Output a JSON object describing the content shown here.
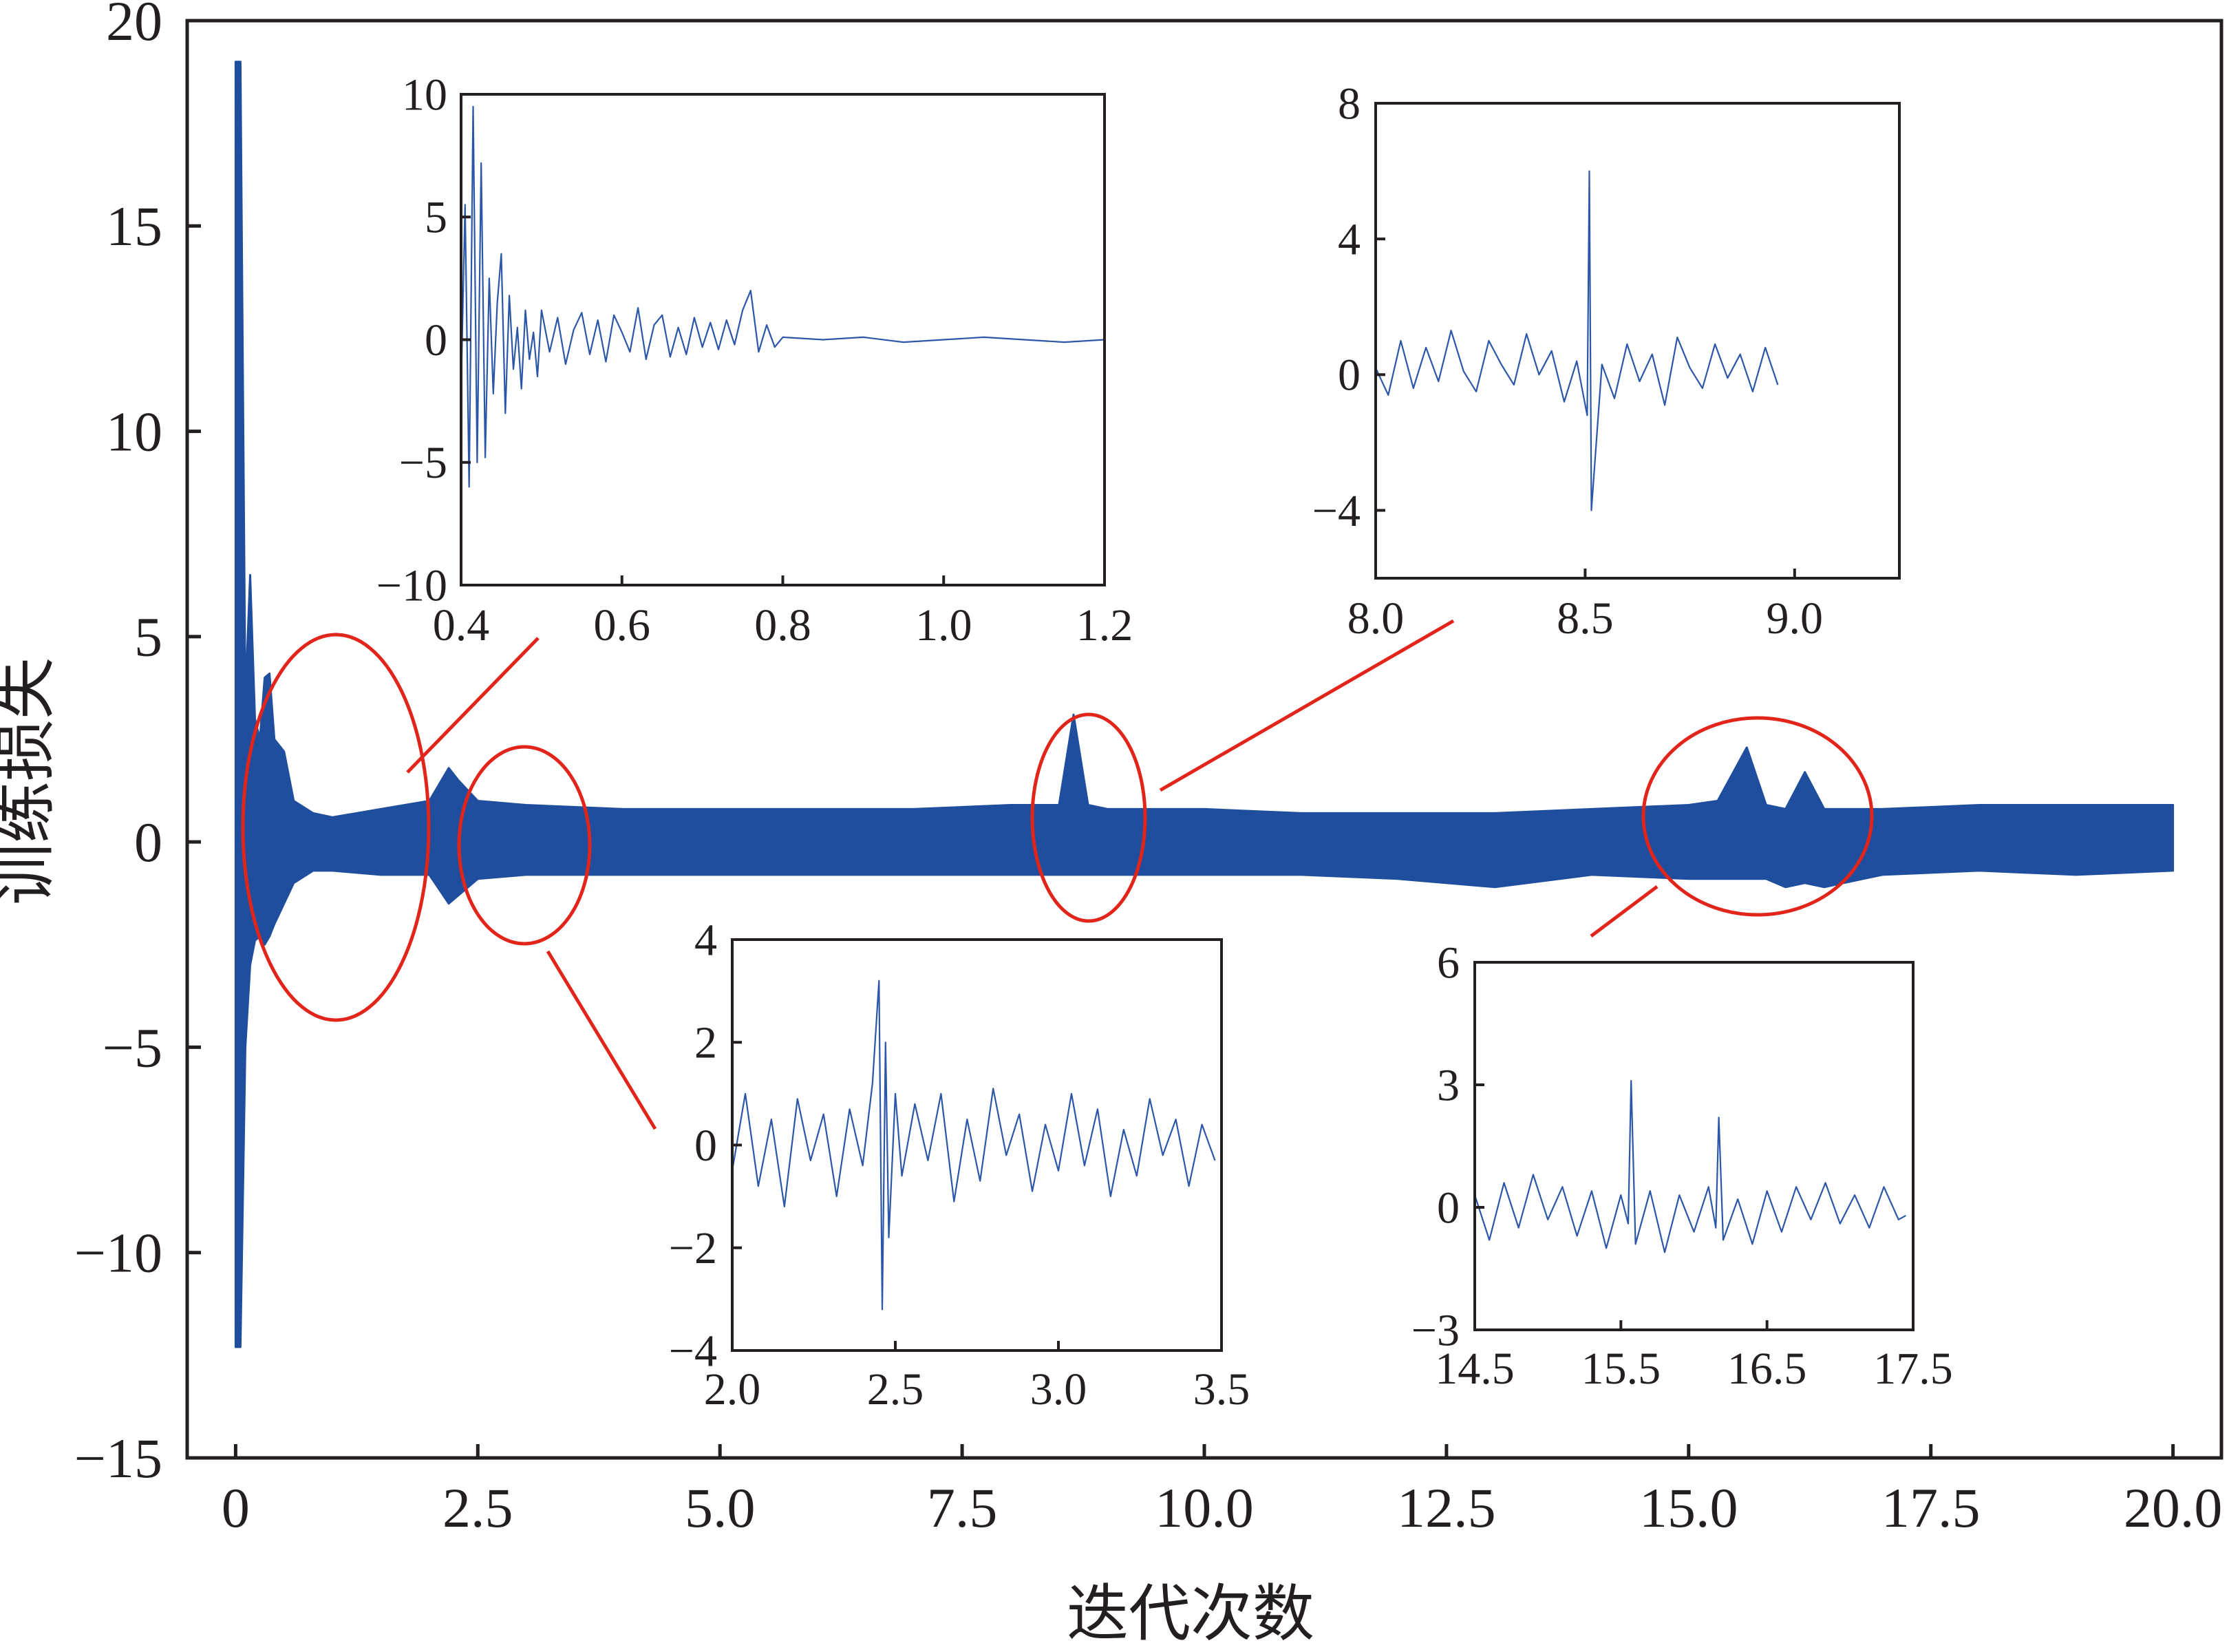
{
  "chart_data": [
    {
      "type": "line",
      "role": "main",
      "xlabel": "迭代次数",
      "ylabel": "训练损失",
      "xlim": [
        -0.5,
        20.5
      ],
      "ylim": [
        -15,
        20
      ],
      "xticks": [
        0,
        2.5,
        5.0,
        7.5,
        10.0,
        12.5,
        15.0,
        17.5,
        20.0
      ],
      "xtick_labels": [
        "0",
        "2.5",
        "5.0",
        "7.5",
        "10.0",
        "12.5",
        "15.0",
        "17.5",
        "20.0"
      ],
      "yticks": [
        -15,
        -10,
        -5,
        0,
        5,
        10,
        15,
        20
      ],
      "ytick_labels": [
        "−15",
        "−10",
        "−5",
        "0",
        "5",
        "10",
        "15",
        "20"
      ],
      "color": "#1f4e9e",
      "series": [
        {
          "x": [
            0.0,
            0.05,
            0.1,
            0.15,
            0.2,
            0.25,
            0.3,
            0.35,
            0.4,
            0.5,
            0.6,
            0.8,
            1.0,
            1.5,
            2.0,
            2.2,
            2.3,
            2.5,
            3.0,
            4.0,
            5.0,
            6.0,
            7.0,
            8.0,
            8.5,
            8.65,
            8.8,
            9.0,
            10.0,
            11.0,
            12.0,
            13.0,
            14.0,
            15.0,
            15.3,
            15.6,
            15.8,
            16.0,
            16.2,
            16.4,
            16.6,
            17.0,
            18.0,
            19.0,
            20.0
          ],
          "upper": [
            19.0,
            19.0,
            3.5,
            6.5,
            3.0,
            2.5,
            4.0,
            4.1,
            2.5,
            2.2,
            1.0,
            0.7,
            0.6,
            0.8,
            1.0,
            1.8,
            1.5,
            1.0,
            0.9,
            0.8,
            0.8,
            0.8,
            0.8,
            0.9,
            0.9,
            3.1,
            0.9,
            0.8,
            0.8,
            0.7,
            0.7,
            0.7,
            0.8,
            0.9,
            1.0,
            2.3,
            0.9,
            0.8,
            1.7,
            0.8,
            0.8,
            0.8,
            0.9,
            0.9,
            0.9
          ],
          "lower": [
            -12.3,
            -12.3,
            -5.0,
            -3.0,
            -2.4,
            -2.3,
            -2.5,
            -2.3,
            -2.0,
            -1.5,
            -1.0,
            -0.7,
            -0.7,
            -0.8,
            -0.8,
            -1.5,
            -1.3,
            -0.9,
            -0.8,
            -0.8,
            -0.8,
            -0.8,
            -0.8,
            -0.8,
            -0.8,
            -0.8,
            -0.8,
            -0.8,
            -0.8,
            -0.8,
            -0.9,
            -1.1,
            -0.8,
            -0.9,
            -0.9,
            -0.9,
            -0.9,
            -1.1,
            -1.0,
            -1.1,
            -1.0,
            -0.8,
            -0.7,
            -0.8,
            -0.7
          ]
        }
      ]
    },
    {
      "type": "line",
      "role": "inset-1",
      "xlim": [
        0.4,
        1.2
      ],
      "ylim": [
        -10,
        10
      ],
      "xticks": [
        0.4,
        0.6,
        0.8,
        1.0,
        1.2
      ],
      "xtick_labels": [
        "0.4",
        "0.6",
        "0.8",
        "1.0",
        "1.2"
      ],
      "yticks": [
        -10,
        -5,
        0,
        5,
        10
      ],
      "ytick_labels": [
        "−10",
        "−5",
        "0",
        "5",
        "10"
      ],
      "series": [
        {
          "x": [
            0.4,
            0.405,
            0.41,
            0.415,
            0.42,
            0.425,
            0.43,
            0.435,
            0.44,
            0.445,
            0.45,
            0.455,
            0.46,
            0.465,
            0.47,
            0.475,
            0.48,
            0.485,
            0.49,
            0.495,
            0.5,
            0.51,
            0.52,
            0.53,
            0.54,
            0.55,
            0.56,
            0.57,
            0.58,
            0.59,
            0.6,
            0.61,
            0.62,
            0.63,
            0.64,
            0.65,
            0.66,
            0.67,
            0.68,
            0.69,
            0.7,
            0.71,
            0.72,
            0.73,
            0.74,
            0.75,
            0.76,
            0.77,
            0.78,
            0.79,
            0.8,
            0.85,
            0.9,
            0.95,
            1.0,
            1.05,
            1.1,
            1.15,
            1.2
          ],
          "y": [
            -2.0,
            5.5,
            -6.0,
            9.5,
            -5.0,
            7.2,
            -4.8,
            2.5,
            -2.2,
            1.5,
            3.5,
            -3.0,
            1.8,
            -1.2,
            0.5,
            -2.0,
            1.2,
            -0.8,
            0.3,
            -1.5,
            1.2,
            -0.5,
            0.9,
            -1.0,
            0.4,
            1.1,
            -0.6,
            0.8,
            -0.9,
            1.0,
            0.3,
            -0.5,
            1.3,
            -0.8,
            0.6,
            1.0,
            -0.7,
            0.5,
            -0.6,
            0.9,
            -0.3,
            0.7,
            -0.4,
            0.8,
            -0.2,
            1.2,
            2.0,
            -0.5,
            0.6,
            -0.3,
            0.1,
            0.0,
            0.1,
            -0.1,
            0.0,
            0.1,
            0.0,
            -0.1,
            0.0
          ]
        }
      ]
    },
    {
      "type": "line",
      "role": "inset-2",
      "xlim": [
        8.0,
        9.25
      ],
      "ylim": [
        -6,
        8
      ],
      "xticks": [
        8.0,
        8.5,
        9.0
      ],
      "xtick_labels": [
        "8.0",
        "8.5",
        "9.0"
      ],
      "yticks": [
        -4,
        0,
        4,
        8
      ],
      "ytick_labels": [
        "−4",
        "0",
        "4",
        "8"
      ],
      "series": [
        {
          "x": [
            8.0,
            8.03,
            8.06,
            8.09,
            8.12,
            8.15,
            8.18,
            8.21,
            8.24,
            8.27,
            8.3,
            8.33,
            8.36,
            8.39,
            8.42,
            8.45,
            8.48,
            8.505,
            8.51,
            8.515,
            8.54,
            8.57,
            8.6,
            8.63,
            8.66,
            8.69,
            8.72,
            8.75,
            8.78,
            8.81,
            8.84,
            8.87,
            8.9,
            8.93,
            8.96
          ],
          "y": [
            0.2,
            -0.6,
            1.0,
            -0.4,
            0.8,
            -0.2,
            1.3,
            0.1,
            -0.5,
            1.0,
            0.3,
            -0.3,
            1.2,
            0.0,
            0.7,
            -0.8,
            0.4,
            -1.2,
            6.0,
            -4.0,
            0.3,
            -0.7,
            0.9,
            -0.2,
            0.6,
            -0.9,
            1.1,
            0.2,
            -0.4,
            0.9,
            -0.1,
            0.6,
            -0.5,
            0.8,
            -0.3
          ]
        }
      ]
    },
    {
      "type": "line",
      "role": "inset-3",
      "xlim": [
        2.0,
        3.5
      ],
      "ylim": [
        -4,
        4
      ],
      "xticks": [
        2.0,
        2.5,
        3.0,
        3.5
      ],
      "xtick_labels": [
        "2.0",
        "2.5",
        "3.0",
        "3.5"
      ],
      "yticks": [
        -4,
        -2,
        0,
        2,
        4
      ],
      "ytick_labels": [
        "−4",
        "−2",
        "0",
        "2",
        "4"
      ],
      "series": [
        {
          "x": [
            2.0,
            2.04,
            2.08,
            2.12,
            2.16,
            2.2,
            2.24,
            2.28,
            2.32,
            2.36,
            2.4,
            2.43,
            2.45,
            2.46,
            2.47,
            2.48,
            2.5,
            2.52,
            2.56,
            2.6,
            2.64,
            2.68,
            2.72,
            2.76,
            2.8,
            2.84,
            2.88,
            2.92,
            2.96,
            3.0,
            3.04,
            3.08,
            3.12,
            3.16,
            3.2,
            3.24,
            3.28,
            3.32,
            3.36,
            3.4,
            3.44,
            3.48
          ],
          "y": [
            -0.5,
            1.0,
            -0.8,
            0.5,
            -1.2,
            0.9,
            -0.3,
            0.6,
            -1.0,
            0.7,
            -0.4,
            1.2,
            3.2,
            -3.2,
            2.0,
            -1.8,
            1.0,
            -0.6,
            0.8,
            -0.3,
            1.0,
            -1.1,
            0.5,
            -0.7,
            1.1,
            -0.2,
            0.6,
            -0.9,
            0.4,
            -0.5,
            1.0,
            -0.4,
            0.7,
            -1.0,
            0.3,
            -0.6,
            0.9,
            -0.2,
            0.5,
            -0.8,
            0.4,
            -0.3
          ]
        }
      ]
    },
    {
      "type": "line",
      "role": "inset-4",
      "xlim": [
        14.5,
        17.5
      ],
      "ylim": [
        -3,
        6
      ],
      "xticks": [
        14.5,
        15.5,
        16.5,
        17.5
      ],
      "xtick_labels": [
        "14.5",
        "15.5",
        "16.5",
        "17.5"
      ],
      "yticks": [
        -3,
        0,
        3,
        6
      ],
      "ytick_labels": [
        "−3",
        "0",
        "3",
        "6"
      ],
      "series": [
        {
          "x": [
            14.5,
            14.6,
            14.7,
            14.8,
            14.9,
            15.0,
            15.1,
            15.2,
            15.3,
            15.4,
            15.5,
            15.55,
            15.57,
            15.6,
            15.7,
            15.8,
            15.9,
            16.0,
            16.1,
            16.15,
            16.17,
            16.2,
            16.3,
            16.4,
            16.5,
            16.6,
            16.7,
            16.8,
            16.9,
            17.0,
            17.1,
            17.2,
            17.3,
            17.4,
            17.45
          ],
          "y": [
            0.3,
            -0.8,
            0.6,
            -0.5,
            0.8,
            -0.3,
            0.5,
            -0.7,
            0.4,
            -1.0,
            0.3,
            -0.4,
            3.1,
            -0.9,
            0.4,
            -1.1,
            0.3,
            -0.6,
            0.5,
            -0.5,
            2.2,
            -0.8,
            0.2,
            -0.9,
            0.4,
            -0.6,
            0.5,
            -0.3,
            0.6,
            -0.4,
            0.3,
            -0.5,
            0.5,
            -0.3,
            -0.2
          ]
        }
      ]
    }
  ]
}
